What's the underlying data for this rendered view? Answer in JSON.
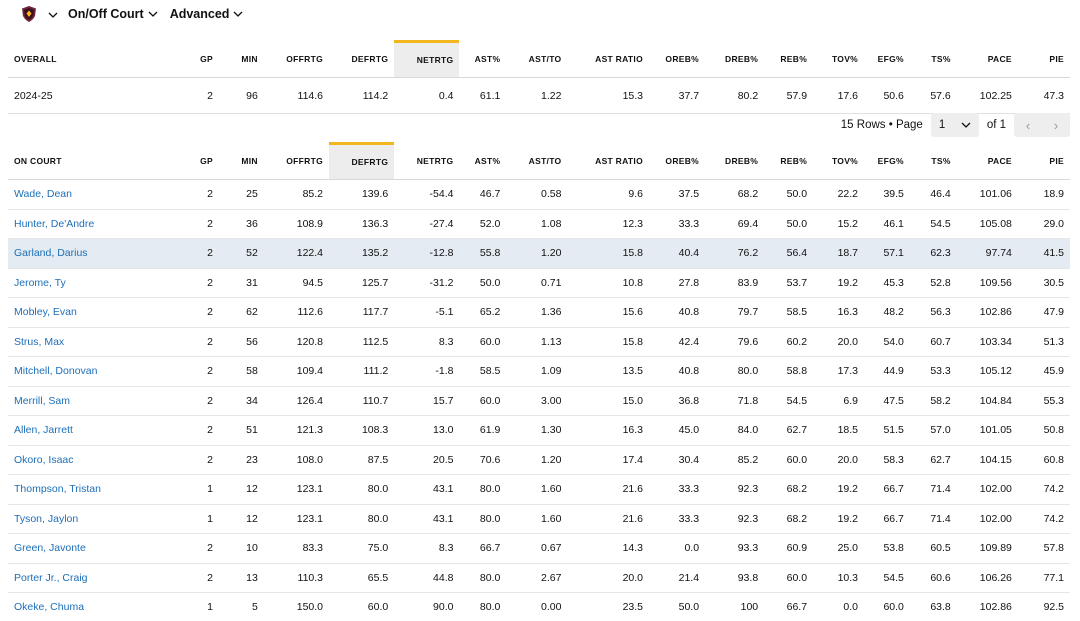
{
  "header": {
    "logo_icon": "team-shield-icon",
    "dropdowns": [
      "On/Off Court",
      "Advanced"
    ]
  },
  "columns": [
    "GP",
    "MIN",
    "OFFRTG",
    "DEFRTG",
    "NETRTG",
    "AST%",
    "AST/TO",
    "AST RATIO",
    "OREB%",
    "DREB%",
    "REB%",
    "TOV%",
    "EFG%",
    "TS%",
    "PACE",
    "PIE"
  ],
  "overall": {
    "title": "OVERALL",
    "sorted_column": "NETRTG",
    "rows": [
      [
        "2024-25",
        "2",
        "96",
        "114.6",
        "114.2",
        "0.4",
        "61.1",
        "1.22",
        "15.3",
        "37.7",
        "80.2",
        "57.9",
        "17.6",
        "50.6",
        "57.6",
        "102.25",
        "47.3"
      ]
    ]
  },
  "pager": {
    "rows_label": "15 Rows • Page",
    "page": "1",
    "of_label": "of 1",
    "prev": "‹",
    "next": "›"
  },
  "oncourt": {
    "title": "ON COURT",
    "sorted_column": "DEFRTG",
    "highlight_row": 2,
    "rows": [
      [
        "Wade, Dean",
        "2",
        "25",
        "85.2",
        "139.6",
        "-54.4",
        "46.7",
        "0.58",
        "9.6",
        "37.5",
        "68.2",
        "50.0",
        "22.2",
        "39.5",
        "46.4",
        "101.06",
        "18.9"
      ],
      [
        "Hunter, De'Andre",
        "2",
        "36",
        "108.9",
        "136.3",
        "-27.4",
        "52.0",
        "1.08",
        "12.3",
        "33.3",
        "69.4",
        "50.0",
        "15.2",
        "46.1",
        "54.5",
        "105.08",
        "29.0"
      ],
      [
        "Garland, Darius",
        "2",
        "52",
        "122.4",
        "135.2",
        "-12.8",
        "55.8",
        "1.20",
        "15.8",
        "40.4",
        "76.2",
        "56.4",
        "18.7",
        "57.1",
        "62.3",
        "97.74",
        "41.5"
      ],
      [
        "Jerome, Ty",
        "2",
        "31",
        "94.5",
        "125.7",
        "-31.2",
        "50.0",
        "0.71",
        "10.8",
        "27.8",
        "83.9",
        "53.7",
        "19.2",
        "45.3",
        "52.8",
        "109.56",
        "30.5"
      ],
      [
        "Mobley, Evan",
        "2",
        "62",
        "112.6",
        "117.7",
        "-5.1",
        "65.2",
        "1.36",
        "15.6",
        "40.8",
        "79.7",
        "58.5",
        "16.3",
        "48.2",
        "56.3",
        "102.86",
        "47.9"
      ],
      [
        "Strus, Max",
        "2",
        "56",
        "120.8",
        "112.5",
        "8.3",
        "60.0",
        "1.13",
        "15.8",
        "42.4",
        "79.6",
        "60.2",
        "20.0",
        "54.0",
        "60.7",
        "103.34",
        "51.3"
      ],
      [
        "Mitchell, Donovan",
        "2",
        "58",
        "109.4",
        "111.2",
        "-1.8",
        "58.5",
        "1.09",
        "13.5",
        "40.8",
        "80.0",
        "58.8",
        "17.3",
        "44.9",
        "53.3",
        "105.12",
        "45.9"
      ],
      [
        "Merrill, Sam",
        "2",
        "34",
        "126.4",
        "110.7",
        "15.7",
        "60.0",
        "3.00",
        "15.0",
        "36.8",
        "71.8",
        "54.5",
        "6.9",
        "47.5",
        "58.2",
        "104.84",
        "55.3"
      ],
      [
        "Allen, Jarrett",
        "2",
        "51",
        "121.3",
        "108.3",
        "13.0",
        "61.9",
        "1.30",
        "16.3",
        "45.0",
        "84.0",
        "62.7",
        "18.5",
        "51.5",
        "57.0",
        "101.05",
        "50.8"
      ],
      [
        "Okoro, Isaac",
        "2",
        "23",
        "108.0",
        "87.5",
        "20.5",
        "70.6",
        "1.20",
        "17.4",
        "30.4",
        "85.2",
        "60.0",
        "20.0",
        "58.3",
        "62.7",
        "104.15",
        "60.8"
      ],
      [
        "Thompson, Tristan",
        "1",
        "12",
        "123.1",
        "80.0",
        "43.1",
        "80.0",
        "1.60",
        "21.6",
        "33.3",
        "92.3",
        "68.2",
        "19.2",
        "66.7",
        "71.4",
        "102.00",
        "74.2"
      ],
      [
        "Tyson, Jaylon",
        "1",
        "12",
        "123.1",
        "80.0",
        "43.1",
        "80.0",
        "1.60",
        "21.6",
        "33.3",
        "92.3",
        "68.2",
        "19.2",
        "66.7",
        "71.4",
        "102.00",
        "74.2"
      ],
      [
        "Green, Javonte",
        "2",
        "10",
        "83.3",
        "75.0",
        "8.3",
        "66.7",
        "0.67",
        "14.3",
        "0.0",
        "93.3",
        "60.9",
        "25.0",
        "53.8",
        "60.5",
        "109.89",
        "57.8"
      ],
      [
        "Porter Jr., Craig",
        "2",
        "13",
        "110.3",
        "65.5",
        "44.8",
        "80.0",
        "2.67",
        "20.0",
        "21.4",
        "93.8",
        "60.0",
        "10.3",
        "54.5",
        "60.6",
        "106.26",
        "77.1"
      ],
      [
        "Okeke, Chuma",
        "1",
        "5",
        "150.0",
        "60.0",
        "90.0",
        "80.0",
        "0.00",
        "23.5",
        "50.0",
        "100",
        "66.7",
        "0.0",
        "60.0",
        "63.8",
        "102.86",
        "92.5"
      ]
    ]
  },
  "colors": {
    "link": "#1d6fb8",
    "sort_accent": "#f2b61f",
    "sorted_header_bg": "#ededed",
    "highlight_row_bg": "#e4ebf2",
    "logo_primary": "#6f263d",
    "logo_secondary": "#ffb81c"
  }
}
